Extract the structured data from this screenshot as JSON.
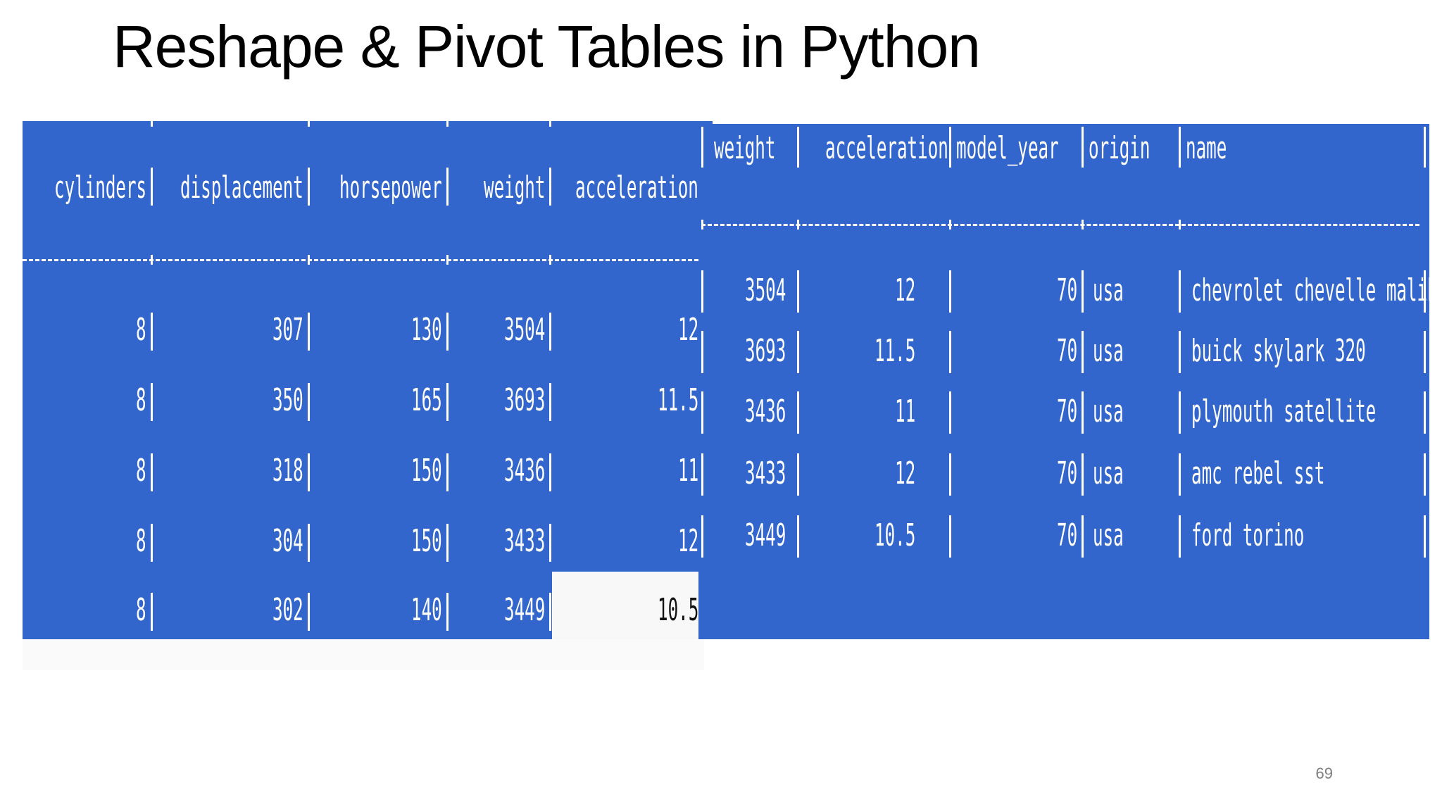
{
  "slide": {
    "title": "Reshape & Pivot Tables in Python",
    "page_number": "69"
  },
  "left_table": {
    "columns": [
      "cylinders",
      "displacement",
      "horsepower",
      "weight",
      "acceleration"
    ],
    "rows": [
      [
        "8",
        "307",
        "130",
        "3504",
        "12"
      ],
      [
        "8",
        "350",
        "165",
        "3693",
        "11.5"
      ],
      [
        "8",
        "318",
        "150",
        "3436",
        "11"
      ],
      [
        "8",
        "304",
        "150",
        "3433",
        "12"
      ],
      [
        "8",
        "302",
        "140",
        "3449",
        "10.5"
      ]
    ]
  },
  "right_table": {
    "columns": [
      "weight",
      "acceleration",
      "model_year",
      "origin",
      "name"
    ],
    "rows": [
      [
        "3504",
        "12",
        "70",
        "usa",
        "chevrolet chevelle malibu"
      ],
      [
        "3693",
        "11.5",
        "70",
        "usa",
        "buick skylark 320"
      ],
      [
        "3436",
        "11",
        "70",
        "usa",
        "plymouth satellite"
      ],
      [
        "3433",
        "12",
        "70",
        "usa",
        "amc rebel sst"
      ],
      [
        "3449",
        "10.5",
        "70",
        "usa",
        "ford torino"
      ]
    ]
  },
  "colors": {
    "table_background": "#3366cc",
    "table_text": "#ffffff",
    "highlight_cell": "#f8f8f8"
  }
}
